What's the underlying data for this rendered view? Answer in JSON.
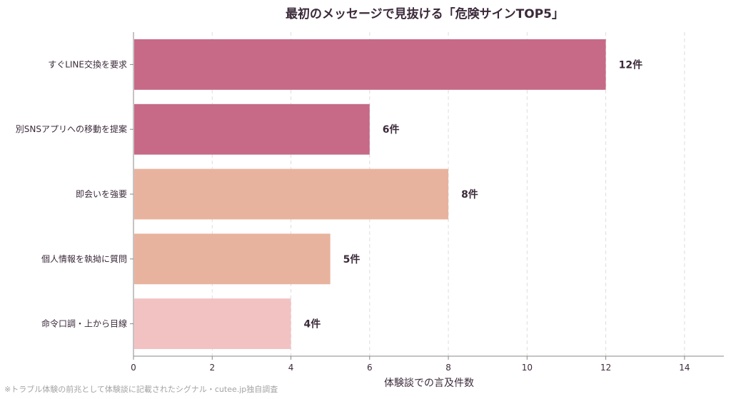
{
  "chart_data": {
    "type": "bar",
    "orientation": "horizontal",
    "title": "最初のメッセージで見抜ける「危険サインTOP5」",
    "xlabel": "体験談での言及件数",
    "ylabel": "",
    "categories": [
      "すぐLINE交換を要求",
      "別SNSアプリへの移動を提案",
      "即会いを強要",
      "個人情報を執拗に質問",
      "命令口調・上から目線"
    ],
    "values": [
      12,
      6,
      8,
      5,
      4
    ],
    "value_labels": [
      "12件",
      "6件",
      "8件",
      "5件",
      "4件"
    ],
    "bar_colors": [
      "#c66a87",
      "#c66a87",
      "#e8b39e",
      "#e8b39e",
      "#f2c2c2"
    ],
    "xlim": [
      0,
      15
    ],
    "xticks": [
      0,
      2,
      4,
      6,
      8,
      10,
      12,
      14
    ],
    "xtick_labels": [
      "0",
      "2",
      "4",
      "6",
      "8",
      "10",
      "12",
      "14"
    ],
    "grid": "vertical dashed",
    "footnote": "※トラブル体験の前兆として体験談に記載されたシグナル・cutee.jp独自調査"
  }
}
